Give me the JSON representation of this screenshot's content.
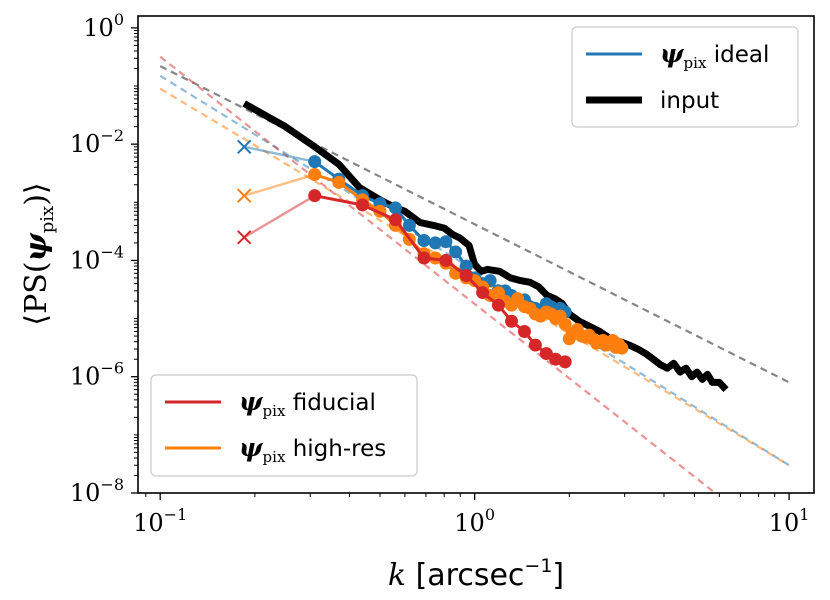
{
  "chart_data": {
    "type": "line",
    "xscale": "log",
    "yscale": "log",
    "xlim": [
      0.085,
      12
    ],
    "ylim": [
      1e-08,
      1.6
    ],
    "xlabel": "k [arcsec⁻¹]",
    "ylabel": "⟨PS(ψpix)⟩",
    "x_ticks": [
      {
        "value": 0.1,
        "base": "10",
        "exp": "−1"
      },
      {
        "value": 1,
        "base": "10",
        "exp": "0"
      },
      {
        "value": 10,
        "base": "10",
        "exp": "1"
      }
    ],
    "y_ticks": [
      {
        "value": 1,
        "base": "10",
        "exp": "0"
      },
      {
        "value": 0.01,
        "base": "10",
        "exp": "−2"
      },
      {
        "value": 0.0001,
        "base": "10",
        "exp": "−4"
      },
      {
        "value": 1e-06,
        "base": "10",
        "exp": "−6"
      },
      {
        "value": 1e-08,
        "base": "10",
        "exp": "−8"
      }
    ],
    "legends": [
      {
        "position": "upper-right",
        "entries": [
          {
            "series": "ideal",
            "sym": "ψ",
            "sub": "pix",
            "text": "ideal"
          },
          {
            "series": "input",
            "sym": "",
            "sub": "",
            "text": "input"
          }
        ]
      },
      {
        "position": "lower-left",
        "entries": [
          {
            "series": "fiducial",
            "sym": "ψ",
            "sub": "pix",
            "text": "fiducial"
          },
          {
            "series": "high-res",
            "sym": "ψ",
            "sub": "pix",
            "text": "high-res"
          }
        ]
      }
    ],
    "series": [
      {
        "key": "input",
        "label": "input",
        "color": "#000000",
        "kind": "thick",
        "x": [
          0.185,
          0.25,
          0.31,
          0.37,
          0.43,
          0.5,
          0.56,
          0.6,
          0.67,
          0.74,
          0.8,
          0.85,
          0.9,
          0.96,
          1.0,
          1.05,
          1.1,
          1.2,
          1.3,
          1.4,
          1.5,
          1.6,
          1.7,
          1.8,
          1.9,
          2.0,
          2.15,
          2.3,
          2.5,
          2.7,
          2.9,
          3.1,
          3.3,
          3.5,
          3.7,
          3.9,
          4.1,
          4.3,
          4.5,
          4.7,
          4.9,
          5.1,
          5.3,
          5.5,
          5.7,
          6.0,
          6.3
        ],
        "y": [
          0.05,
          0.02,
          0.009,
          0.0045,
          0.0018,
          0.0011,
          0.0008,
          0.0007,
          0.00045,
          0.0004,
          0.00036,
          0.00028,
          0.00024,
          0.00018,
          8.5e-05,
          6.5e-05,
          7e-05,
          6.5e-05,
          5e-05,
          4.5e-05,
          4.2e-05,
          3.5e-05,
          2.5e-05,
          2.2e-05,
          1.8e-05,
          1.2e-05,
          9e-06,
          7.5e-06,
          6e-06,
          4.5e-06,
          4e-06,
          3.5e-06,
          3e-06,
          2.5e-06,
          2e-06,
          1.6e-06,
          1.4e-06,
          1.7e-06,
          1.2e-06,
          1.4e-06,
          1e-06,
          1.2e-06,
          9e-07,
          1.1e-06,
          8e-07,
          8e-07,
          6e-07
        ]
      },
      {
        "key": "ideal",
        "label": "ideal",
        "color": "#1f77b4",
        "kind": "dots",
        "cross": {
          "x": 0.185,
          "y": 0.009
        },
        "x": [
          0.31,
          0.37,
          0.44,
          0.5,
          0.56,
          0.62,
          0.69,
          0.75,
          0.81,
          0.87,
          0.94,
          1.0,
          1.06,
          1.12,
          1.19,
          1.25,
          1.31,
          1.37,
          1.44,
          1.5,
          1.56,
          1.62,
          1.69,
          1.75,
          1.81,
          1.87,
          1.94
        ],
        "y": [
          0.005,
          0.0025,
          0.0013,
          0.00095,
          0.0008,
          0.0004,
          0.00022,
          0.0002,
          0.00021,
          0.00014,
          8e-05,
          5e-05,
          4e-05,
          4.5e-05,
          3e-05,
          3e-05,
          2.5e-05,
          2e-05,
          2.1e-05,
          1.6e-05,
          1.5e-05,
          1.4e-05,
          1.8e-05,
          1.6e-05,
          1.3e-05,
          1.5e-05,
          1.3e-05
        ]
      },
      {
        "key": "high-res",
        "label": "high-res",
        "color": "#ff7f0e",
        "kind": "dots",
        "cross": {
          "x": 0.185,
          "y": 0.0013
        },
        "x": [
          0.31,
          0.37,
          0.44,
          0.5,
          0.56,
          0.62,
          0.69,
          0.75,
          0.81,
          0.87,
          0.94,
          1.0,
          1.06,
          1.12,
          1.19,
          1.25,
          1.31,
          1.37,
          1.44,
          1.5,
          1.56,
          1.62,
          1.69,
          1.75,
          1.81,
          1.87,
          1.94,
          2.0,
          2.06,
          2.12,
          2.19,
          2.25,
          2.31,
          2.37,
          2.44,
          2.5,
          2.56,
          2.62,
          2.69,
          2.75,
          2.81,
          2.87,
          2.94
        ],
        "y": [
          0.003,
          0.0022,
          0.0011,
          0.0007,
          0.0004,
          0.00023,
          0.00013,
          0.00011,
          9e-05,
          6e-05,
          5e-05,
          4.5e-05,
          3.5e-05,
          2.5e-05,
          2.8e-05,
          2e-05,
          1.7e-05,
          2.2e-05,
          1.6e-05,
          1.5e-05,
          1.2e-05,
          1.1e-05,
          1.3e-05,
          1.2e-05,
          1e-05,
          1.1e-05,
          8e-06,
          4.5e-06,
          5.5e-06,
          6.5e-06,
          5e-06,
          4.8e-06,
          5.2e-06,
          4.5e-06,
          3.8e-06,
          4e-06,
          4.2e-06,
          3.5e-06,
          3.8e-06,
          4.2e-06,
          3.2e-06,
          3.6e-06,
          3.1e-06
        ]
      },
      {
        "key": "fiducial",
        "label": "fiducial",
        "color": "#d62728",
        "kind": "dots",
        "cross": {
          "x": 0.185,
          "y": 0.00025
        },
        "x": [
          0.31,
          0.44,
          0.56,
          0.69,
          0.81,
          0.94,
          1.06,
          1.19,
          1.31,
          1.44,
          1.56,
          1.69,
          1.81,
          1.94
        ],
        "y": [
          0.0013,
          0.0009,
          0.0005,
          0.00011,
          0.0001,
          5.5e-05,
          2.8e-05,
          1.7e-05,
          9e-06,
          6e-06,
          3.5e-06,
          2.5e-06,
          2e-06,
          1.8e-06
        ]
      }
    ],
    "fit_lines": [
      {
        "color": "#808080",
        "opacity": 0.95,
        "x": [
          0.1,
          10
        ],
        "y": [
          0.22,
          8e-07
        ]
      },
      {
        "color": "#1f77b4",
        "opacity": 0.5,
        "x": [
          0.1,
          10
        ],
        "y": [
          0.15,
          3e-08
        ]
      },
      {
        "color": "#ff7f0e",
        "opacity": 0.55,
        "x": [
          0.1,
          10
        ],
        "y": [
          0.09,
          3e-08
        ]
      },
      {
        "color": "#d62728",
        "opacity": 0.5,
        "x": [
          0.1,
          10
        ],
        "y": [
          0.32,
          1e-09
        ]
      }
    ]
  }
}
